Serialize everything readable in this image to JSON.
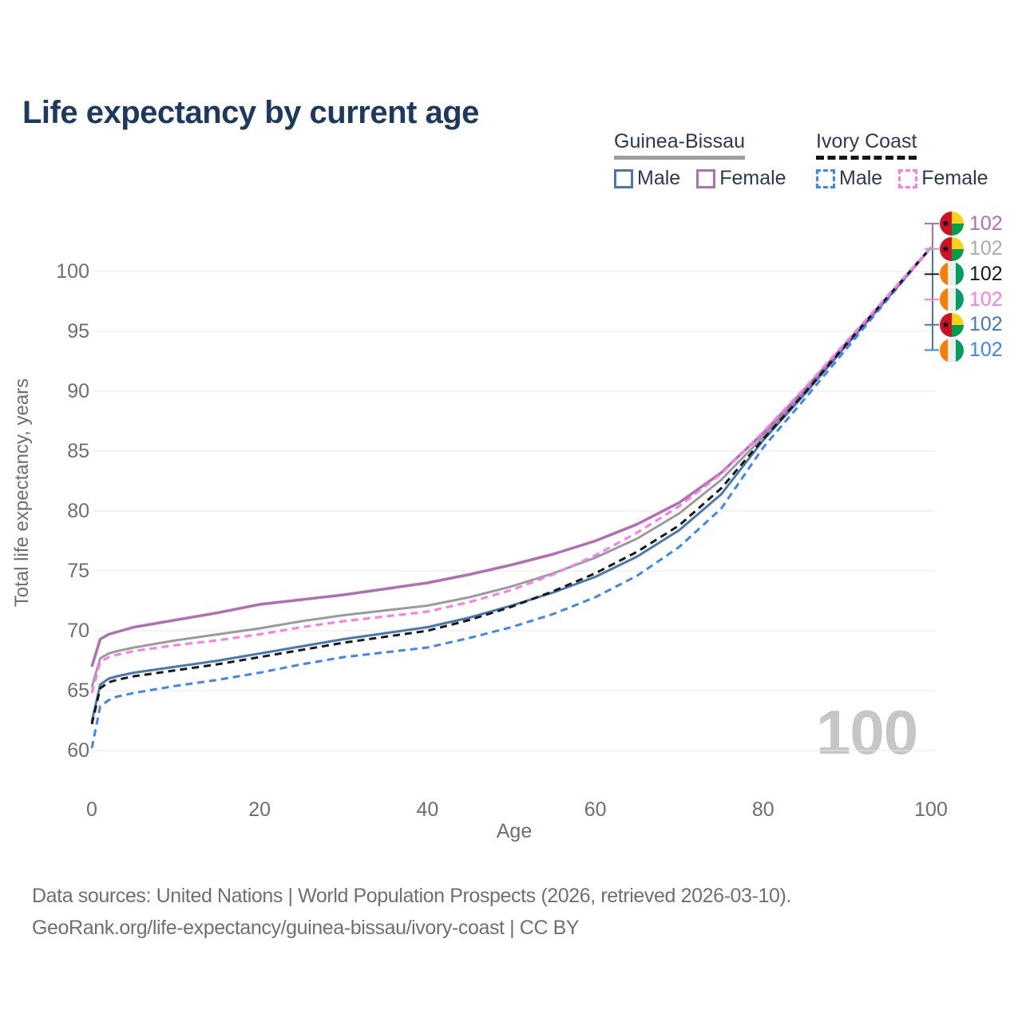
{
  "page": {
    "title": "Life expectancy by current age"
  },
  "legend": {
    "groups": [
      {
        "label": "Guinea-Bissau",
        "line_style": "solid",
        "underline_color": "#9e9e9e",
        "items": [
          {
            "label": "Male",
            "color": "#4a77b4",
            "dashed": false
          },
          {
            "label": "Female",
            "color": "#b06fb3",
            "dashed": false
          }
        ]
      },
      {
        "label": "Ivory Coast",
        "line_style": "dashed",
        "underline_color": "#141414",
        "items": [
          {
            "label": "Male",
            "color": "#3f86f0",
            "dashed": true
          },
          {
            "label": "Female",
            "color": "#fb7ce8",
            "dashed": true
          }
        ]
      }
    ]
  },
  "chart_data": {
    "type": "line",
    "title": "Life expectancy by current age",
    "xlabel": "Age",
    "ylabel": "Total life expectancy, years",
    "xlim": [
      0,
      100
    ],
    "ylim": [
      60,
      102
    ],
    "xticks": [
      0,
      20,
      40,
      60,
      80,
      100
    ],
    "yticks": [
      60,
      65,
      70,
      75,
      80,
      85,
      90,
      95,
      100
    ],
    "grid": "horizontal",
    "legend_position": "top-right",
    "x": [
      0,
      1,
      2,
      3,
      5,
      10,
      15,
      20,
      25,
      30,
      35,
      40,
      45,
      50,
      55,
      60,
      65,
      70,
      75,
      80,
      85,
      90,
      95,
      100
    ],
    "series": [
      {
        "name": "Guinea-Bissau",
        "color": "#9b9b9b",
        "dashed": false,
        "width": 3,
        "values": [
          65.3,
          67.7,
          68.1,
          68.3,
          68.6,
          69.2,
          69.7,
          70.2,
          70.8,
          71.3,
          71.7,
          72.1,
          72.8,
          73.7,
          74.8,
          76.1,
          77.7,
          79.8,
          82.6,
          86.2,
          90.0,
          94.0,
          98.0,
          102
        ]
      },
      {
        "name": "Guinea-Bissau Male",
        "color": "#4a77b4",
        "dashed": false,
        "width": 3,
        "values": [
          62.4,
          65.5,
          66.0,
          66.2,
          66.5,
          67.0,
          67.5,
          68.1,
          68.7,
          69.3,
          69.8,
          70.3,
          71.1,
          72.1,
          73.2,
          74.5,
          76.2,
          78.4,
          81.4,
          85.9,
          89.8,
          93.9,
          97.9,
          102
        ]
      },
      {
        "name": "Guinea-Bissau Female",
        "color": "#b06fb3",
        "dashed": false,
        "width": 3.5,
        "values": [
          67.0,
          69.3,
          69.7,
          69.9,
          70.3,
          70.9,
          71.5,
          72.2,
          72.6,
          73.0,
          73.5,
          74.0,
          74.7,
          75.5,
          76.4,
          77.5,
          78.9,
          80.7,
          83.2,
          86.5,
          90.2,
          94.1,
          98.0,
          102
        ]
      },
      {
        "name": "Ivory Coast Male",
        "color": "#3f86f0",
        "dashed": true,
        "width": 3,
        "values": [
          60.2,
          63.7,
          64.2,
          64.5,
          64.8,
          65.4,
          65.9,
          66.5,
          67.2,
          67.8,
          68.2,
          68.6,
          69.4,
          70.3,
          71.4,
          72.8,
          74.6,
          77.0,
          80.2,
          85.3,
          89.4,
          93.6,
          97.8,
          102
        ]
      },
      {
        "name": "Ivory Coast",
        "color": "#1a1a1a",
        "dashed": true,
        "width": 3,
        "values": [
          62.2,
          65.2,
          65.7,
          65.9,
          66.2,
          66.7,
          67.2,
          67.8,
          68.4,
          69.0,
          69.5,
          70.0,
          70.9,
          72.0,
          73.3,
          74.8,
          76.6,
          78.8,
          81.9,
          86.0,
          89.9,
          94.0,
          98.0,
          102
        ]
      },
      {
        "name": "Ivory Coast Female",
        "color": "#fb7ce8",
        "dashed": true,
        "width": 3,
        "values": [
          64.8,
          67.4,
          67.8,
          68.0,
          68.3,
          68.8,
          69.2,
          69.7,
          70.3,
          70.8,
          71.2,
          71.6,
          72.4,
          73.4,
          74.7,
          76.3,
          78.2,
          80.4,
          83.1,
          86.6,
          90.3,
          94.2,
          98.1,
          102
        ]
      }
    ]
  },
  "end_labels": [
    {
      "value": "102",
      "color": "#b06fb3",
      "flag": "gw",
      "series": "Guinea-Bissau Female"
    },
    {
      "value": "102",
      "color": "#ababab",
      "flag": "gw",
      "series": "Guinea-Bissau"
    },
    {
      "value": "102",
      "color": "#1a1a1a",
      "flag": "ci",
      "series": "Ivory Coast"
    },
    {
      "value": "102",
      "color": "#fb7ce8",
      "flag": "ci",
      "series": "Ivory Coast Female"
    },
    {
      "value": "102",
      "color": "#4a77b4",
      "flag": "gw",
      "series": "Guinea-Bissau Male"
    },
    {
      "value": "102",
      "color": "#3f86f0",
      "flag": "ci",
      "series": "Ivory Coast Male"
    }
  ],
  "watermark": "100",
  "footer": {
    "line1": "Data sources: United Nations | World Population Prospects (2026, retrieved 2026-03-10).",
    "line2": "GeoRank.org/life-expectancy/guinea-bissau/ivory-coast | CC BY"
  }
}
